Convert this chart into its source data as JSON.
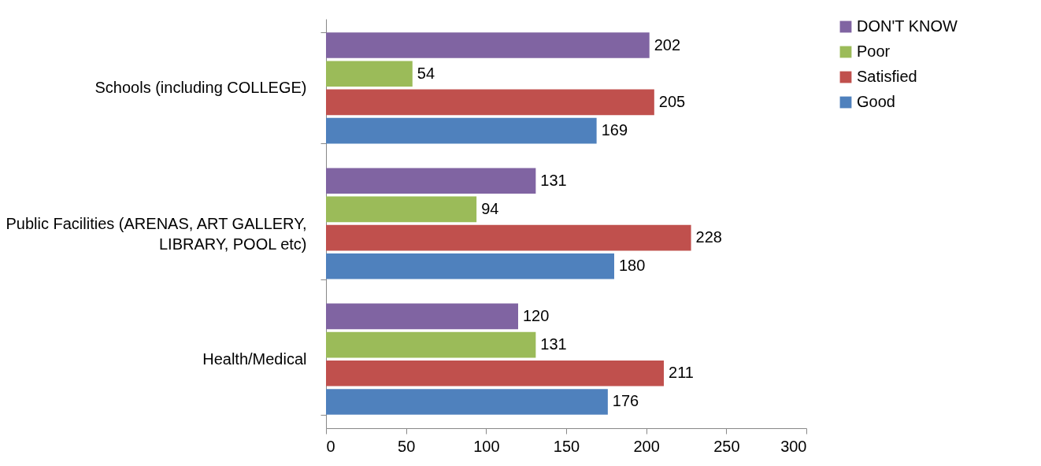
{
  "chart_data": {
    "type": "bar",
    "orientation": "horizontal",
    "categories": [
      "Schools (including COLLEGE)",
      "Public Facilities (ARENAS, ART GALLERY, LIBRARY, POOL etc)",
      "Health/Medical"
    ],
    "series": [
      {
        "name": "DON'T KNOW",
        "color": "#8064a2",
        "values": [
          202,
          131,
          120
        ]
      },
      {
        "name": "Poor",
        "color": "#9bbb59",
        "values": [
          54,
          94,
          131
        ]
      },
      {
        "name": "Satisfied",
        "color": "#c0504d",
        "values": [
          205,
          228,
          211
        ]
      },
      {
        "name": "Good",
        "color": "#4f81bd",
        "values": [
          169,
          180,
          176
        ]
      }
    ],
    "xlim": [
      0,
      300
    ],
    "xticks": [
      0,
      50,
      100,
      150,
      200,
      250,
      300
    ],
    "grid": false,
    "legend": "right",
    "data_labels": true
  }
}
